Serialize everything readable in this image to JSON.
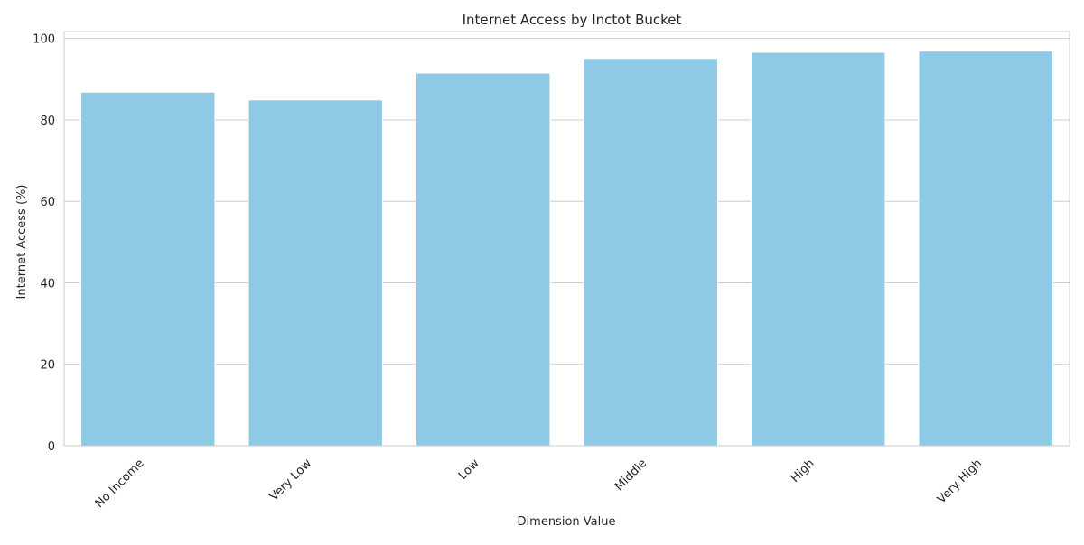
{
  "chart_data": {
    "type": "bar",
    "title": "Internet Access by Inctot Bucket",
    "xlabel": "Dimension Value",
    "ylabel": "Internet Access (%)",
    "categories": [
      "No Income",
      "Very Low",
      "Low",
      "Middle",
      "High",
      "Very High"
    ],
    "values": [
      86.8,
      84.9,
      91.5,
      95.1,
      96.6,
      96.9
    ],
    "ylim": [
      0,
      101.7
    ],
    "yticks": [
      0,
      20,
      40,
      60,
      80,
      100
    ],
    "grid": true,
    "bar_color": "#8ecae6",
    "grid_color": "#cccccc",
    "spine_color": "#cccccc"
  }
}
